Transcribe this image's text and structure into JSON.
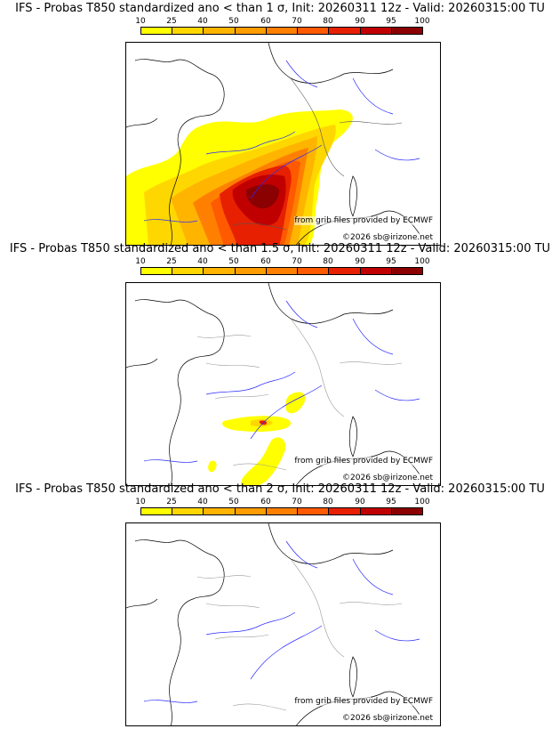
{
  "legend": {
    "ticks": [
      "10",
      "25",
      "40",
      "50",
      "60",
      "70",
      "80",
      "90",
      "95",
      "100"
    ],
    "colors": [
      "#ffff00",
      "#ffd700",
      "#ffb400",
      "#ff9c00",
      "#ff8000",
      "#ff5a00",
      "#e62000",
      "#c00000",
      "#8b0000",
      "#4a0000"
    ]
  },
  "panels": [
    {
      "title": "IFS - Probas T850  standardized ano < than 1 σ, Init: 20260311 12z - Valid: 20260315:00 TU",
      "credit_source": "from grib files provided by ECMWF",
      "credit_copyright": "©2026 sb@irizone.net"
    },
    {
      "title": "IFS - Probas T850  standardized ano < than 1.5 σ, Init: 20260311 12z - Valid: 20260315:00 TU",
      "credit_source": "from grib files provided by ECMWF",
      "credit_copyright": "©2026 sb@irizone.net"
    },
    {
      "title": "IFS - Probas T850  standardized ano < than 2 σ, Init: 20260311 12z - Valid: 20260315:00 TU",
      "credit_source": "from grib files provided by ECMWF",
      "credit_copyright": "©2026 sb@irizone.net"
    }
  ]
}
